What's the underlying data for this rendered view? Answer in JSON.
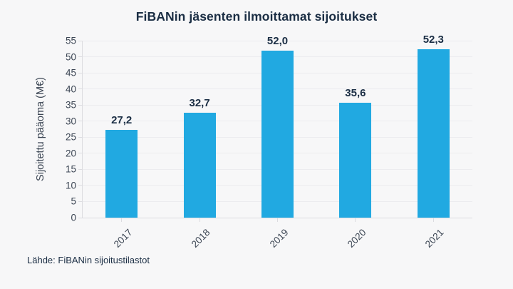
{
  "title": "FiBANin jäsenten ilmoittamat sijoitukset",
  "y_axis_title": "Sijoitettu pääoma (M€)",
  "source": "Lähde: FiBANin sijoitustilastot",
  "colors": {
    "background": "#f7f7f8",
    "bar": "#21a9e1",
    "title": "#1b2e44",
    "tick_text": "#3b4553",
    "grid": "#ececef",
    "axis": "#dcdce0"
  },
  "chart_data": {
    "type": "bar",
    "title": "FiBANin jäsenten ilmoittamat sijoitukset",
    "categories": [
      "2017",
      "2018",
      "2019",
      "2020",
      "2021"
    ],
    "values": [
      27.2,
      32.7,
      52.0,
      35.6,
      52.3
    ],
    "value_labels": [
      "27,2",
      "32,7",
      "52,0",
      "35,6",
      "52,3"
    ],
    "xlabel": "",
    "ylabel": "Sijoitettu pääoma (M€)",
    "ylim": [
      0,
      55
    ],
    "ytick_step": 5,
    "ytick_labels": [
      "0",
      "5",
      "10",
      "15",
      "20",
      "25",
      "30",
      "35",
      "40",
      "45",
      "50",
      "55"
    ],
    "grid": true,
    "legend_position": "none",
    "source": "Lähde: FiBANin sijoitustilastot"
  }
}
